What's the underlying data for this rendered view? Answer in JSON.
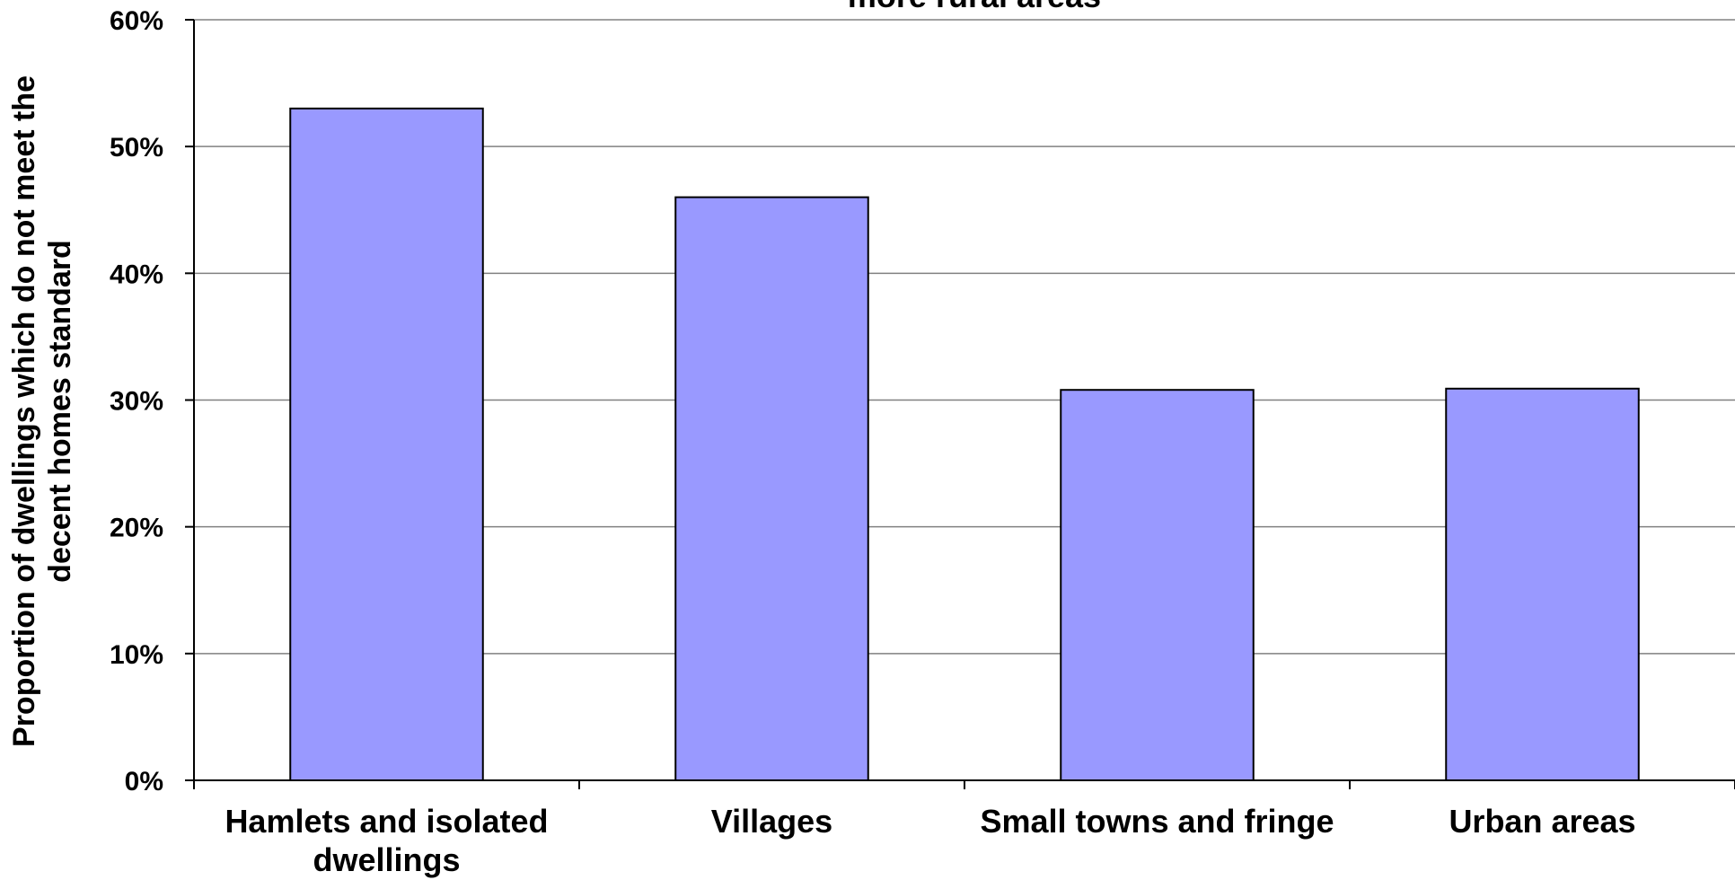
{
  "chart_data": {
    "type": "bar",
    "title": "more rural areas",
    "xlabel": "",
    "ylabel_lines": [
      "Proportion of dwellings which do not meet the",
      "decent homes standard"
    ],
    "categories": [
      [
        "Hamlets and isolated",
        "dwellings"
      ],
      [
        "Villages"
      ],
      [
        "Small towns and fringe"
      ],
      [
        "Urban areas"
      ]
    ],
    "values": [
      0.53,
      0.46,
      0.308,
      0.309
    ],
    "ylim": [
      0,
      0.6
    ],
    "yticks": [
      0,
      0.1,
      0.2,
      0.3,
      0.4,
      0.5,
      0.6
    ],
    "ytick_labels": [
      "0%",
      "10%",
      "20%",
      "30%",
      "40%",
      "50%",
      "60%"
    ],
    "grid": true,
    "legend": "none",
    "colors": {
      "bar_fill": "#9999ff",
      "bar_stroke": "#000000",
      "grid": "#808080",
      "axis": "#000000"
    }
  }
}
